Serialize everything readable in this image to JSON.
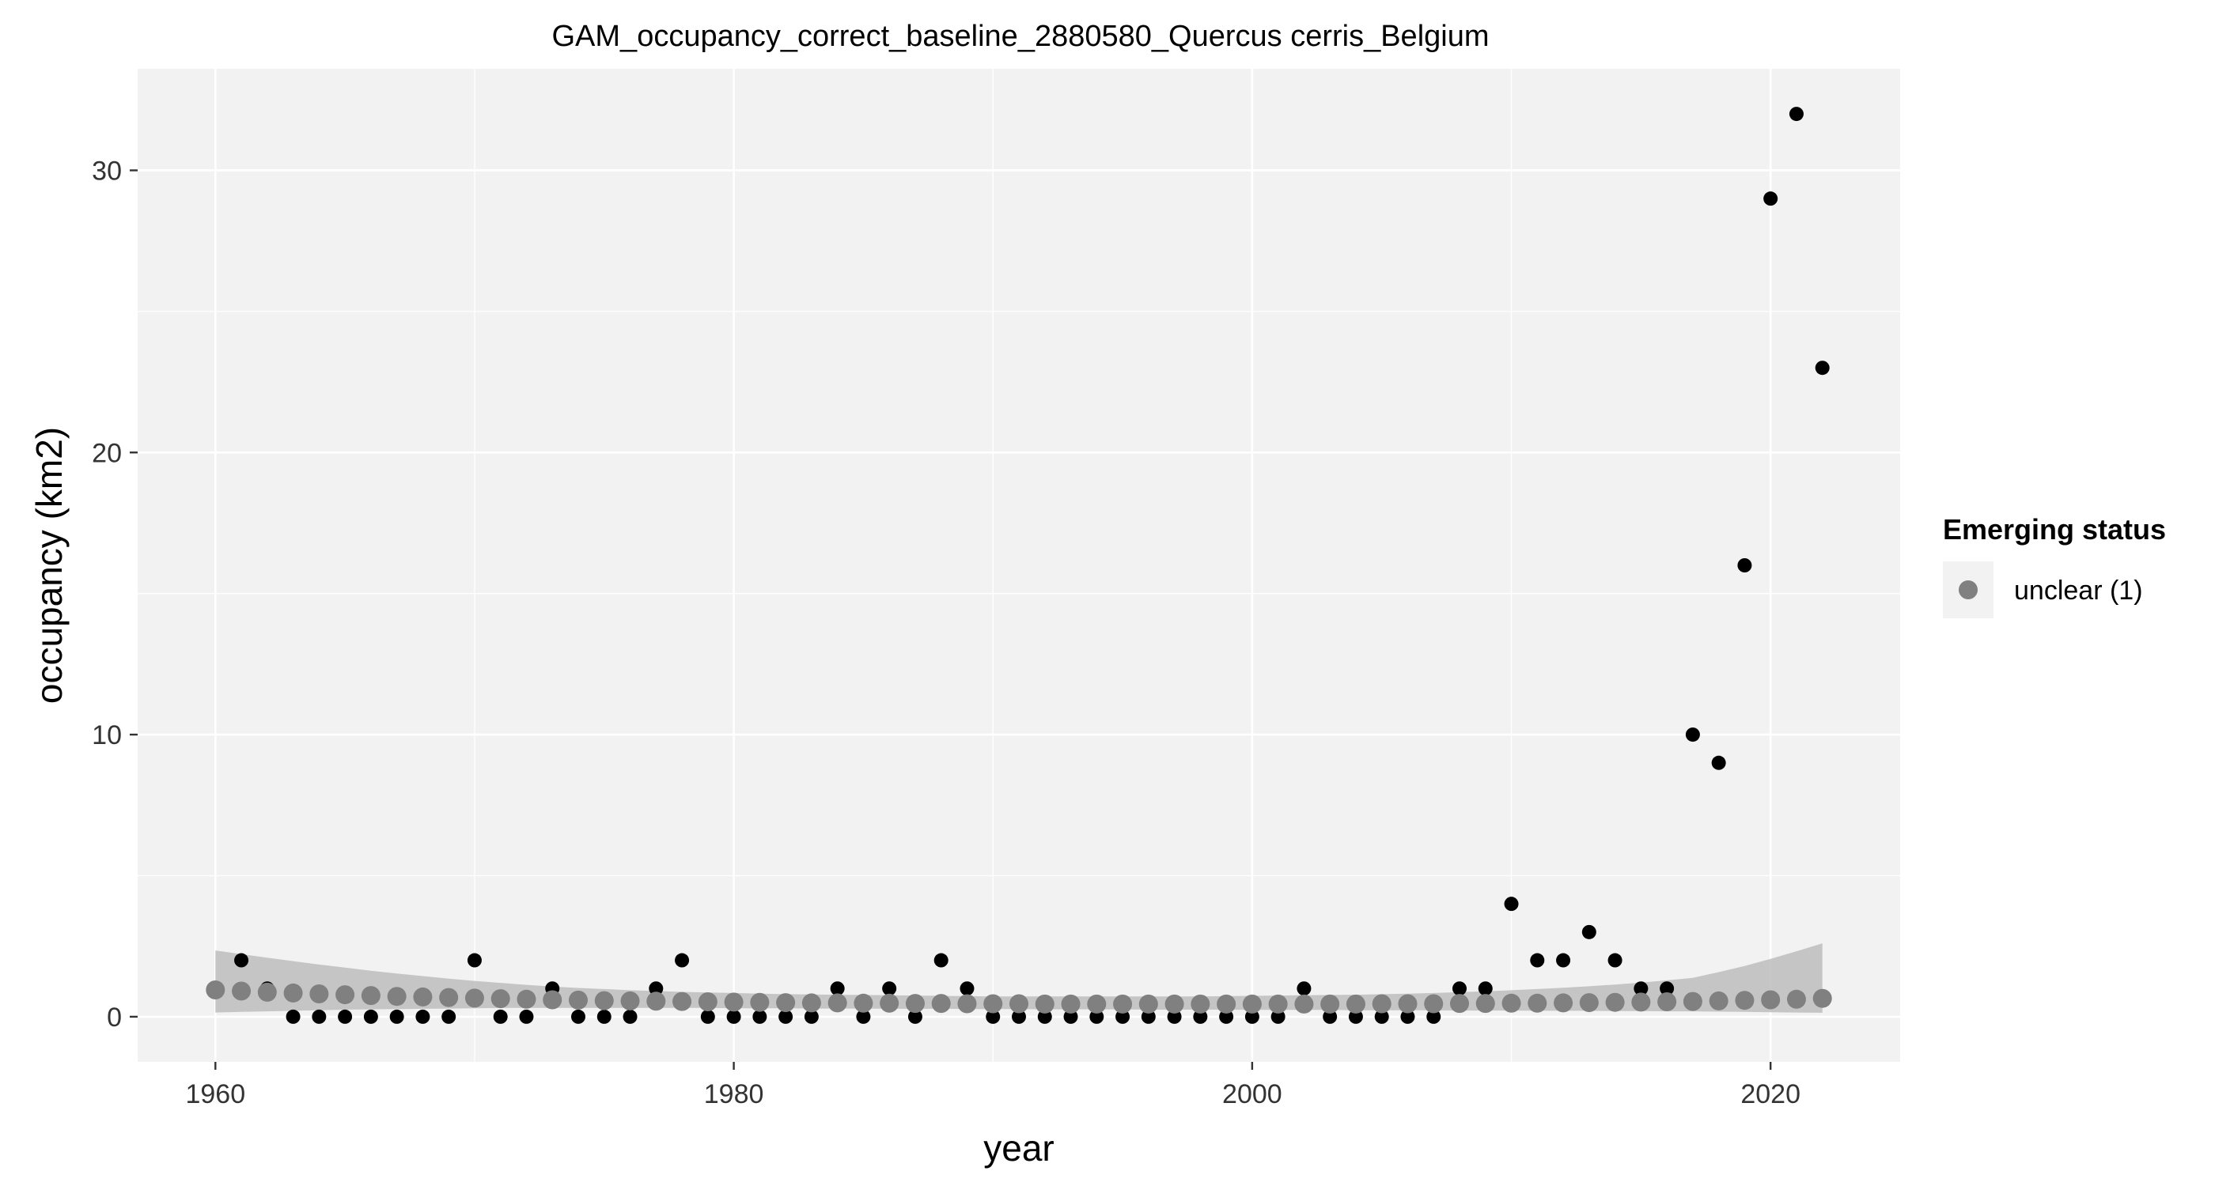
{
  "chart_data": {
    "type": "scatter",
    "title": "GAM_occupancy_correct_baseline_2880580_Quercus cerris_Belgium",
    "xlabel": "year",
    "ylabel": "occupancy (km2)",
    "xlim": [
      1957,
      2025
    ],
    "ylim": [
      -1.6,
      33.6
    ],
    "x_ticks": [
      1960,
      1980,
      2000,
      2020
    ],
    "y_ticks": [
      0,
      10,
      20,
      30
    ],
    "grid": true,
    "legend": {
      "title": "Emerging status",
      "placement": "right",
      "entries": [
        {
          "label": "unclear (1)",
          "color": "#808080"
        }
      ]
    },
    "observed": {
      "color": "#000000",
      "x": [
        1960,
        1961,
        1962,
        1963,
        1964,
        1965,
        1966,
        1967,
        1968,
        1969,
        1970,
        1971,
        1972,
        1973,
        1974,
        1975,
        1976,
        1977,
        1978,
        1979,
        1980,
        1981,
        1982,
        1983,
        1984,
        1985,
        1986,
        1987,
        1988,
        1989,
        1990,
        1991,
        1992,
        1993,
        1994,
        1995,
        1996,
        1997,
        1998,
        1999,
        2000,
        2001,
        2002,
        2003,
        2004,
        2005,
        2006,
        2007,
        2008,
        2009,
        2010,
        2011,
        2012,
        2013,
        2014,
        2015,
        2016,
        2017,
        2018,
        2019,
        2020,
        2021,
        2022
      ],
      "y": [
        1,
        2,
        1,
        0,
        0,
        0,
        0,
        0,
        0,
        0,
        2,
        0,
        0,
        1,
        0,
        0,
        0,
        1,
        2,
        0,
        0,
        0,
        0,
        0,
        1,
        0,
        1,
        0,
        2,
        1,
        0,
        0,
        0,
        0,
        0,
        0,
        0,
        0,
        0,
        0,
        0,
        0,
        1,
        0,
        0,
        0,
        0,
        0,
        1,
        1,
        4,
        2,
        2,
        3,
        2,
        1,
        1,
        10,
        9,
        16,
        29,
        32,
        23
      ]
    },
    "fitted": {
      "name": "unclear (1)",
      "color": "#808080",
      "band_color": "#bdbdbd",
      "x": [
        1960,
        1961,
        1962,
        1963,
        1964,
        1965,
        1966,
        1967,
        1968,
        1969,
        1970,
        1971,
        1972,
        1973,
        1974,
        1975,
        1976,
        1977,
        1978,
        1979,
        1980,
        1981,
        1982,
        1983,
        1984,
        1985,
        1986,
        1987,
        1988,
        1989,
        1990,
        1991,
        1992,
        1993,
        1994,
        1995,
        1996,
        1997,
        1998,
        1999,
        2000,
        2001,
        2002,
        2003,
        2004,
        2005,
        2006,
        2007,
        2008,
        2009,
        2010,
        2011,
        2012,
        2013,
        2014,
        2015,
        2016,
        2017,
        2018,
        2019,
        2020,
        2021,
        2022
      ],
      "y": [
        0.95,
        0.91,
        0.87,
        0.84,
        0.81,
        0.78,
        0.75,
        0.72,
        0.7,
        0.68,
        0.66,
        0.64,
        0.62,
        0.6,
        0.59,
        0.57,
        0.56,
        0.55,
        0.54,
        0.53,
        0.52,
        0.51,
        0.5,
        0.49,
        0.49,
        0.48,
        0.48,
        0.47,
        0.47,
        0.46,
        0.46,
        0.46,
        0.45,
        0.45,
        0.45,
        0.45,
        0.45,
        0.45,
        0.45,
        0.45,
        0.45,
        0.45,
        0.45,
        0.45,
        0.45,
        0.46,
        0.46,
        0.46,
        0.47,
        0.47,
        0.48,
        0.48,
        0.49,
        0.5,
        0.51,
        0.52,
        0.53,
        0.54,
        0.56,
        0.58,
        0.6,
        0.62,
        0.65
      ],
      "lower": [
        0.15,
        0.17,
        0.19,
        0.21,
        0.23,
        0.25,
        0.26,
        0.27,
        0.28,
        0.29,
        0.3,
        0.31,
        0.31,
        0.31,
        0.31,
        0.31,
        0.31,
        0.31,
        0.31,
        0.31,
        0.3,
        0.3,
        0.3,
        0.29,
        0.29,
        0.29,
        0.28,
        0.28,
        0.28,
        0.27,
        0.27,
        0.27,
        0.26,
        0.26,
        0.26,
        0.26,
        0.25,
        0.25,
        0.25,
        0.25,
        0.24,
        0.24,
        0.24,
        0.24,
        0.23,
        0.23,
        0.23,
        0.23,
        0.22,
        0.22,
        0.22,
        0.21,
        0.21,
        0.21,
        0.2,
        0.2,
        0.19,
        0.19,
        0.18,
        0.17,
        0.16,
        0.15,
        0.14
      ],
      "upper": [
        2.35,
        2.22,
        2.09,
        1.97,
        1.85,
        1.74,
        1.63,
        1.53,
        1.44,
        1.35,
        1.27,
        1.2,
        1.13,
        1.07,
        1.02,
        0.98,
        0.94,
        0.91,
        0.88,
        0.86,
        0.84,
        0.82,
        0.8,
        0.79,
        0.78,
        0.77,
        0.76,
        0.75,
        0.74,
        0.73,
        0.72,
        0.72,
        0.72,
        0.72,
        0.72,
        0.72,
        0.72,
        0.72,
        0.72,
        0.73,
        0.74,
        0.75,
        0.76,
        0.77,
        0.78,
        0.8,
        0.82,
        0.84,
        0.87,
        0.9,
        0.94,
        0.98,
        1.03,
        1.08,
        1.14,
        1.21,
        1.29,
        1.38,
        1.58,
        1.8,
        2.05,
        2.32,
        2.6
      ]
    }
  }
}
